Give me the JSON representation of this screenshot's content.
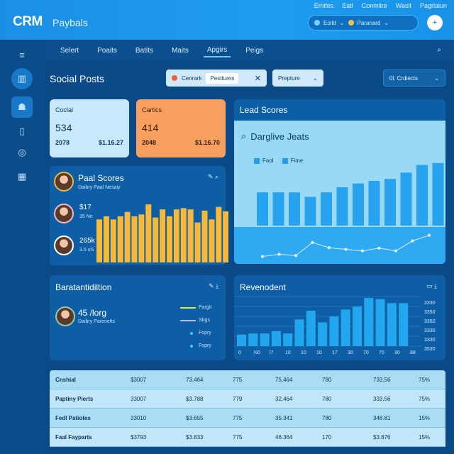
{
  "header": {
    "brand": "CRM",
    "brand_sub": "Paybals",
    "links": [
      "Emifes",
      "Eatl",
      "Conmiire",
      "Waslt",
      "Pagrlaiun"
    ],
    "search_value": "Eoild",
    "search_chip": "Paranard",
    "action_icon": "plus-icon"
  },
  "sidebar": {
    "items": [
      {
        "icon": "menu-icon"
      },
      {
        "icon": "chart-icon"
      },
      {
        "icon": "contacts-icon"
      },
      {
        "icon": "document-icon"
      },
      {
        "icon": "settings-icon"
      },
      {
        "icon": "calendar-icon"
      }
    ]
  },
  "nav": {
    "tabs": [
      "Selert",
      "Poaits",
      "Batits",
      "Maits",
      "Apgirs",
      "Peigs"
    ],
    "active_tab": "Apgirs"
  },
  "page": {
    "title": "Social Posts",
    "filter_label": "Cenrark",
    "filter_chip": "Pesttures",
    "select_label": "Prepture",
    "select2_label": "0l. Crdiects"
  },
  "kpi": [
    {
      "label": "Coclal",
      "value": "534",
      "left": "2078",
      "right": "$1.16.27"
    },
    {
      "label": "Cartics",
      "value": "414",
      "left": "2048",
      "right": "$1.16.70"
    }
  ],
  "lead": {
    "title": "Lead Scores",
    "subtitle": "Darglive Jeats",
    "legend": [
      "Faol",
      "Fime"
    ],
    "bar_heights": [
      0.52,
      0.52,
      0.52,
      0.45,
      0.52,
      0.6,
      0.66,
      0.7,
      0.73,
      0.83,
      0.95,
      0.98,
      1.0
    ],
    "line_values": [
      0.1,
      0.17,
      0.13,
      0.55,
      0.38,
      0.33,
      0.28,
      0.37,
      0.28,
      0.6,
      0.78
    ]
  },
  "pipeline": {
    "title": "Paal Scores",
    "subtitle": "Daibry Paal Nesaiy",
    "value1": "$17",
    "sub1": "35 Ne",
    "value2": "265k",
    "sub2": "3.5 oS",
    "bar_heights": [
      0.69,
      0.74,
      0.69,
      0.74,
      0.81,
      0.74,
      0.77,
      0.93,
      0.72,
      0.85,
      0.74,
      0.85,
      0.87,
      0.85,
      0.64,
      0.83,
      0.69,
      0.89,
      0.82
    ]
  },
  "distribution": {
    "title": "Baratantidiltion",
    "value": "45 /lorg",
    "sub": "Daibry Parenetts",
    "legend": [
      {
        "label": "Pargit",
        "color": "#d8e84a"
      },
      {
        "label": "Sbgs",
        "color": "#c3b8ff"
      },
      {
        "label": "Fopry",
        "color": "#4cc3ff"
      },
      {
        "label": "Fopry",
        "color": "#4cc3ff"
      }
    ]
  },
  "revenue": {
    "title": "Revenodent",
    "x_labels": [
      "0",
      "N0",
      "l7",
      "10",
      "10",
      "10",
      "17",
      "30",
      "70",
      "70",
      "30",
      "88"
    ],
    "y_labels": [
      "3330",
      "3350",
      "3350",
      "3330",
      "3330",
      "3530"
    ],
    "bar_heights": [
      0.2,
      0.22,
      0.22,
      0.26,
      0.22,
      0.46,
      0.61,
      0.41,
      0.51,
      0.63,
      0.68,
      0.83,
      0.81,
      0.74,
      0.74
    ]
  },
  "table": {
    "rows": [
      [
        "Cnshial",
        "$3007",
        "73,464",
        "775",
        "75,464",
        "780",
        "733.56",
        "75%"
      ],
      [
        "Paptiny Pierts",
        "33007",
        "$3.788",
        "779",
        "32.464",
        "780",
        "333.56",
        "75%"
      ],
      [
        "Fedl Patiotes",
        "33010",
        "$3.655",
        "775",
        "35.341",
        "780",
        "348.81",
        "15%"
      ],
      [
        "Faal Fayparts",
        "$3793",
        "$3.833",
        "775",
        "46.364",
        "170",
        "$3.876",
        "15%"
      ]
    ]
  }
}
